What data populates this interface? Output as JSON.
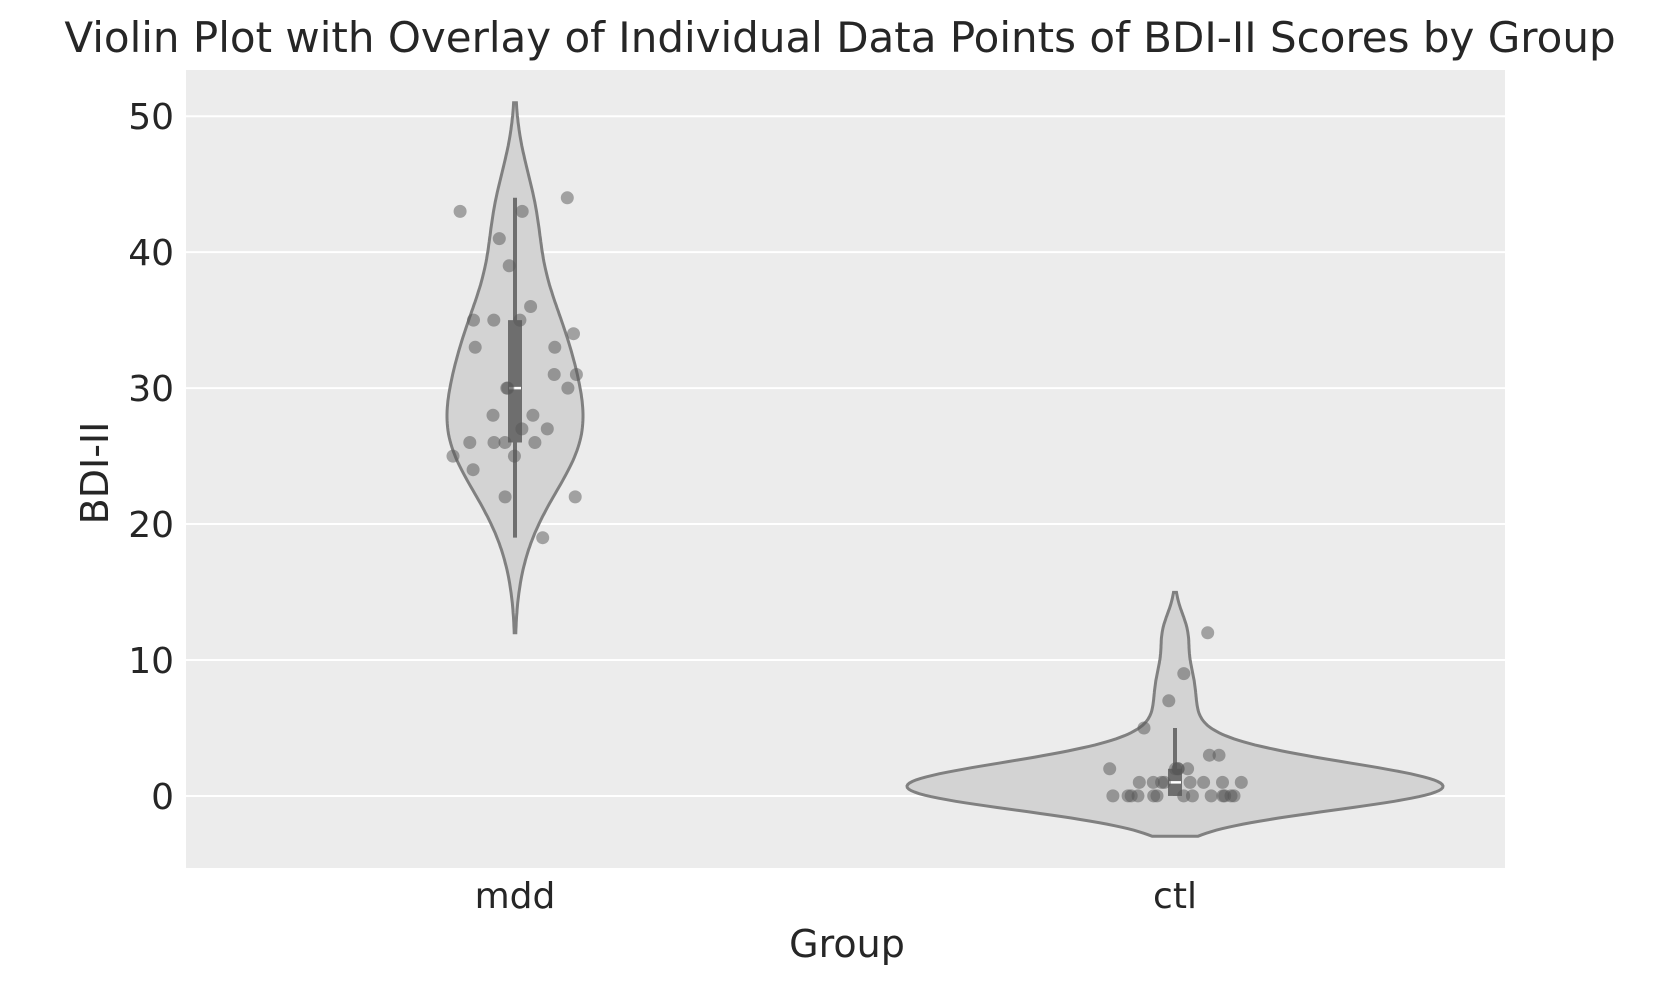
{
  "chart_data": {
    "type": "violin",
    "title": "Violin Plot with Overlay of Individual Data Points of BDI-II Scores by Group",
    "xlabel": "Group",
    "ylabel": "BDI-II",
    "categories": [
      "mdd",
      "ctl"
    ],
    "ylim": [
      -5.3,
      53.4
    ],
    "yticks": [
      0,
      10,
      20,
      30,
      40,
      50
    ],
    "grid": true,
    "legend": "none",
    "colors": {
      "background": "#ececec",
      "grid": "#ffffff",
      "violin_fill": "#d3d3d3",
      "violin_edge": "#808080",
      "box": "#6e6e6e",
      "median": "#ffffff",
      "points": "#555555"
    },
    "groups": [
      {
        "name": "mdd",
        "min": 19,
        "q1": 26,
        "median": 30,
        "q3": 35,
        "max": 44,
        "values": [
          44,
          43,
          43,
          41,
          39,
          36,
          35,
          35,
          35,
          34,
          33,
          33,
          31,
          31,
          30,
          30,
          30,
          28,
          28,
          27,
          27,
          26,
          26,
          26,
          26,
          25,
          25,
          24,
          22,
          22,
          19
        ]
      },
      {
        "name": "ctl",
        "min": 0,
        "q1": 0,
        "median": 1,
        "q3": 2,
        "max": 5,
        "values": [
          12,
          9,
          7,
          5,
          3,
          3,
          2,
          2,
          2,
          2,
          2,
          1,
          1,
          1,
          1,
          1,
          1,
          1,
          1,
          0,
          0,
          0,
          0,
          0,
          0,
          0,
          0,
          0,
          0,
          0,
          0,
          0
        ]
      }
    ]
  }
}
